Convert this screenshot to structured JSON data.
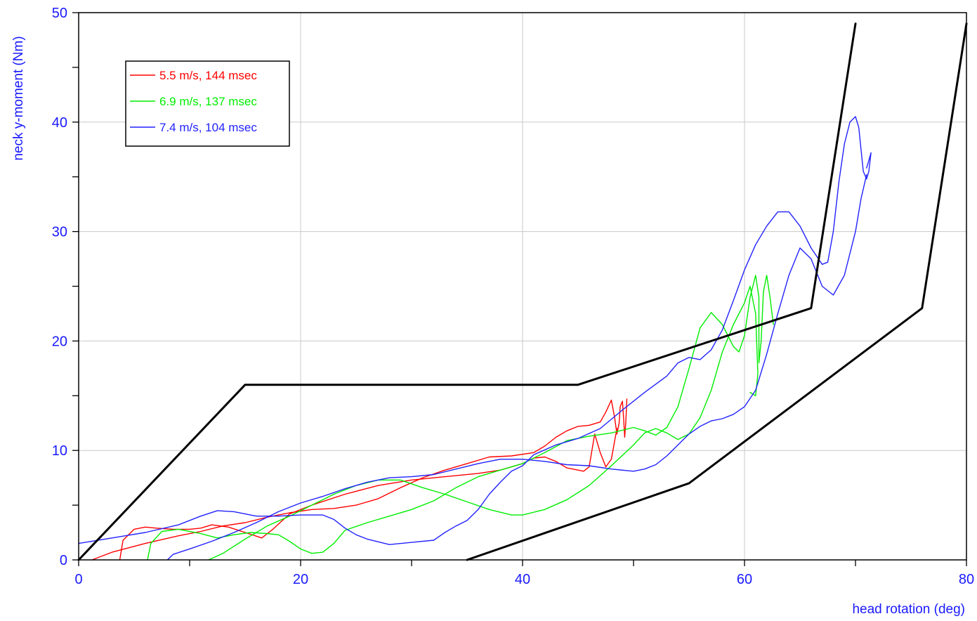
{
  "chart_data": {
    "type": "line",
    "xlabel": "head rotation (deg)",
    "ylabel": "neck y-moment (Nm)",
    "xlim": [
      0,
      80
    ],
    "ylim": [
      0,
      50
    ],
    "x_ticks": [
      0,
      20,
      40,
      60,
      80
    ],
    "x_tick_labels": [
      "0",
      "20",
      "40",
      "60",
      "80"
    ],
    "y_ticks": [
      0,
      10,
      20,
      30,
      40,
      50
    ],
    "y_tick_labels": [
      "0",
      "10",
      "20",
      "30",
      "40",
      "50"
    ],
    "grid": true,
    "legend_position": "top-left",
    "axis_label_color": "#1a1aff",
    "series": [
      {
        "name": "5.5 m/s, 144 msec",
        "color": "#ff0000",
        "curves": [
          [
            [
              1.2,
              0
            ],
            [
              3,
              0.7
            ],
            [
              6,
              1.5
            ],
            [
              9,
              2.2
            ],
            [
              11,
              2.6
            ],
            [
              13,
              3.1
            ],
            [
              15,
              3.4
            ],
            [
              17,
              3.9
            ],
            [
              19,
              4.3
            ],
            [
              21,
              4.6
            ],
            [
              23,
              4.7
            ],
            [
              25,
              5
            ],
            [
              27,
              5.6
            ],
            [
              29,
              6.6
            ],
            [
              31,
              7.5
            ],
            [
              33,
              8.2
            ],
            [
              35,
              8.8
            ],
            [
              37,
              9.4
            ],
            [
              39,
              9.5
            ],
            [
              41,
              9.8
            ],
            [
              42,
              10.4
            ],
            [
              43,
              11.2
            ],
            [
              44,
              11.8
            ],
            [
              45,
              12.2
            ],
            [
              46,
              12.3
            ],
            [
              47,
              12.6
            ],
            [
              47.5,
              13.5
            ],
            [
              48,
              14.6
            ],
            [
              48.3,
              13
            ],
            [
              48.5,
              11.5
            ],
            [
              48.7,
              12.5
            ],
            [
              48.8,
              14
            ],
            [
              49,
              14.5
            ],
            [
              49.1,
              13
            ],
            [
              49.2,
              11.2
            ],
            [
              49.3,
              12.5
            ],
            [
              49.4,
              14.7
            ]
          ],
          [
            [
              3.7,
              0
            ],
            [
              4,
              1.8
            ],
            [
              5,
              2.8
            ],
            [
              6,
              3
            ],
            [
              7,
              2.9
            ],
            [
              8.5,
              2.8
            ],
            [
              10,
              2.8
            ],
            [
              11,
              2.9
            ],
            [
              12,
              3.2
            ],
            [
              13.5,
              3
            ],
            [
              15,
              2.5
            ],
            [
              16.5,
              2
            ],
            [
              17.5,
              2.8
            ],
            [
              19,
              4.2
            ],
            [
              21,
              5
            ],
            [
              24,
              6
            ],
            [
              27,
              6.8
            ],
            [
              30,
              7.3
            ],
            [
              33,
              7.6
            ],
            [
              36,
              7.9
            ],
            [
              38,
              8.2
            ],
            [
              40,
              8.8
            ],
            [
              41,
              9.3
            ],
            [
              42,
              9.4
            ],
            [
              43,
              9
            ],
            [
              44,
              8.4
            ],
            [
              45,
              8.2
            ],
            [
              45.5,
              8.1
            ],
            [
              46,
              8.5
            ],
            [
              46.5,
              11.5
            ],
            [
              47,
              9.8
            ],
            [
              47.5,
              8.5
            ],
            [
              48,
              9.2
            ],
            [
              48.5,
              12
            ]
          ]
        ]
      },
      {
        "name": "6.9 m/s, 137 msec",
        "color": "#00ee00",
        "curves": [
          [
            [
              6.2,
              0
            ],
            [
              6.5,
              1.5
            ],
            [
              7.5,
              2.6
            ],
            [
              9,
              2.8
            ],
            [
              11,
              2.4
            ],
            [
              12.5,
              2
            ],
            [
              14,
              2.3
            ],
            [
              15.5,
              2.5
            ],
            [
              17,
              2.4
            ],
            [
              18,
              2.3
            ],
            [
              19,
              1.7
            ],
            [
              20,
              1
            ],
            [
              21,
              0.6
            ],
            [
              22,
              0.7
            ],
            [
              23,
              1.5
            ],
            [
              24,
              2.7
            ],
            [
              26,
              3.4
            ],
            [
              28,
              4
            ],
            [
              30,
              4.6
            ],
            [
              32,
              5.4
            ],
            [
              34,
              6.6
            ],
            [
              36,
              7.6
            ],
            [
              38,
              8.2
            ],
            [
              40,
              8.8
            ],
            [
              42,
              9.8
            ],
            [
              44,
              10.9
            ],
            [
              46,
              11.3
            ],
            [
              48,
              11.6
            ],
            [
              50,
              12.1
            ],
            [
              51,
              11.8
            ],
            [
              52,
              11.4
            ],
            [
              53,
              12.1
            ],
            [
              54,
              14
            ],
            [
              55,
              17.5
            ],
            [
              56,
              21.2
            ],
            [
              57,
              22.6
            ],
            [
              58,
              21.5
            ],
            [
              59,
              19.5
            ],
            [
              59.5,
              19
            ],
            [
              60,
              20.5
            ],
            [
              60.5,
              24
            ],
            [
              61,
              26
            ],
            [
              61.3,
              24
            ],
            [
              61.3,
              18
            ],
            [
              61.5,
              20
            ],
            [
              61.7,
              24.5
            ],
            [
              62,
              26
            ],
            [
              62.3,
              24
            ],
            [
              62.6,
              21.5
            ]
          ],
          [
            [
              11.7,
              0
            ],
            [
              13,
              0.6
            ],
            [
              15,
              1.9
            ],
            [
              17,
              3.1
            ],
            [
              19,
              4
            ],
            [
              21,
              5
            ],
            [
              23,
              6
            ],
            [
              25,
              6.8
            ],
            [
              27,
              7.3
            ],
            [
              29,
              7.3
            ],
            [
              31,
              6.6
            ],
            [
              33,
              6
            ],
            [
              35,
              5.3
            ],
            [
              37,
              4.6
            ],
            [
              39,
              4.1
            ],
            [
              40,
              4.1
            ],
            [
              42,
              4.6
            ],
            [
              44,
              5.5
            ],
            [
              46,
              6.8
            ],
            [
              48,
              8.6
            ],
            [
              50,
              10.5
            ],
            [
              51,
              11.6
            ],
            [
              52,
              12
            ],
            [
              53,
              11.6
            ],
            [
              54,
              11
            ],
            [
              55,
              11.5
            ],
            [
              56,
              13
            ],
            [
              57,
              15.5
            ],
            [
              58,
              19
            ],
            [
              59,
              21.5
            ],
            [
              60,
              23.5
            ],
            [
              60.5,
              25
            ],
            [
              61,
              22.5
            ],
            [
              61.2,
              17
            ],
            [
              61,
              15
            ],
            [
              60.5,
              15.3
            ]
          ]
        ]
      },
      {
        "name": "7.4 m/s, 104 msec",
        "color": "#2222ff",
        "curves": [
          [
            [
              0,
              1.5
            ],
            [
              3,
              2
            ],
            [
              6,
              2.5
            ],
            [
              9,
              3.2
            ],
            [
              11,
              4
            ],
            [
              12.5,
              4.5
            ],
            [
              14,
              4.4
            ],
            [
              16,
              4
            ],
            [
              18,
              4
            ],
            [
              20,
              4.1
            ],
            [
              22,
              4.1
            ],
            [
              23,
              3.7
            ],
            [
              24,
              2.9
            ],
            [
              25,
              2.3
            ],
            [
              26,
              1.9
            ],
            [
              28,
              1.4
            ],
            [
              30,
              1.6
            ],
            [
              32,
              1.8
            ],
            [
              33,
              2.5
            ],
            [
              34,
              3.1
            ],
            [
              35,
              3.6
            ],
            [
              36,
              4.6
            ],
            [
              37,
              6
            ],
            [
              38,
              7.1
            ],
            [
              39,
              8.1
            ],
            [
              40,
              8.6
            ],
            [
              41,
              9.6
            ],
            [
              43,
              10.5
            ],
            [
              45,
              11.1
            ],
            [
              47,
              12
            ],
            [
              49,
              13.7
            ],
            [
              51,
              15.3
            ],
            [
              53,
              16.8
            ],
            [
              54,
              18
            ],
            [
              55,
              18.5
            ],
            [
              56,
              18.3
            ],
            [
              57,
              19.2
            ],
            [
              58,
              21
            ],
            [
              59,
              23.7
            ],
            [
              60,
              26.5
            ],
            [
              61,
              28.8
            ],
            [
              62,
              30.5
            ],
            [
              63,
              31.8
            ],
            [
              64,
              31.8
            ],
            [
              65,
              30.5
            ],
            [
              66,
              28.5
            ],
            [
              67,
              27
            ],
            [
              67.5,
              27.2
            ],
            [
              68,
              30
            ],
            [
              68.5,
              34.5
            ],
            [
              69,
              38
            ],
            [
              69.5,
              40
            ],
            [
              70,
              40.5
            ],
            [
              70.3,
              39.5
            ],
            [
              70.5,
              37.5
            ],
            [
              70.7,
              35.5
            ],
            [
              71,
              34.8
            ],
            [
              71.2,
              35.5
            ],
            [
              71.4,
              37.2
            ],
            [
              71.2,
              36.5
            ],
            [
              71,
              35.8
            ]
          ],
          [
            [
              8,
              0
            ],
            [
              8.5,
              0.5
            ],
            [
              10,
              1
            ],
            [
              12,
              1.7
            ],
            [
              14,
              2.5
            ],
            [
              16,
              3.4
            ],
            [
              18,
              4.4
            ],
            [
              20,
              5.2
            ],
            [
              22,
              5.8
            ],
            [
              24,
              6.5
            ],
            [
              26,
              7.1
            ],
            [
              28,
              7.5
            ],
            [
              30,
              7.6
            ],
            [
              32,
              7.8
            ],
            [
              34,
              8.3
            ],
            [
              36,
              8.8
            ],
            [
              38,
              9.2
            ],
            [
              40,
              9.2
            ],
            [
              42,
              9
            ],
            [
              44,
              8.7
            ],
            [
              46,
              8.6
            ],
            [
              48,
              8.3
            ],
            [
              50,
              8.1
            ],
            [
              51,
              8.3
            ],
            [
              52,
              8.7
            ],
            [
              53,
              9.5
            ],
            [
              54,
              10.5
            ],
            [
              55,
              11.5
            ],
            [
              56,
              12.2
            ],
            [
              57,
              12.7
            ],
            [
              58,
              12.9
            ],
            [
              59,
              13.3
            ],
            [
              60,
              14
            ],
            [
              61,
              15.5
            ],
            [
              62,
              18.8
            ],
            [
              63,
              22.5
            ],
            [
              64,
              26
            ],
            [
              65,
              28.5
            ],
            [
              66,
              27.5
            ],
            [
              67,
              25
            ],
            [
              68,
              24.2
            ],
            [
              69,
              26
            ],
            [
              70,
              30
            ],
            [
              70.5,
              33
            ],
            [
              71,
              35.2
            ]
          ]
        ]
      },
      {
        "name": "",
        "color": "#000000",
        "curves": [
          [
            [
              0,
              0
            ],
            [
              15,
              16
            ],
            [
              45,
              16
            ],
            [
              66,
              23
            ],
            [
              70,
              49
            ]
          ],
          [
            [
              35,
              0
            ],
            [
              55,
              7
            ],
            [
              76,
              23
            ],
            [
              80,
              49
            ]
          ]
        ]
      }
    ]
  }
}
